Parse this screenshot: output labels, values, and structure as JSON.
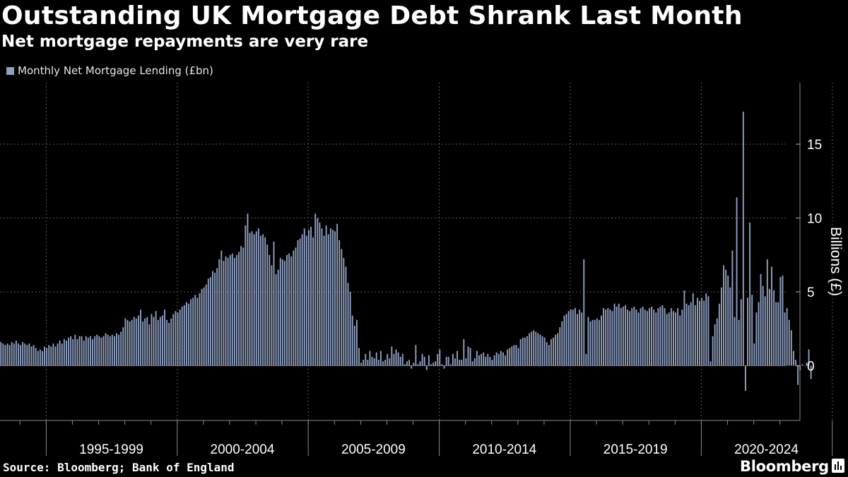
{
  "title": "Outstanding UK Mortgage Debt Shrank Last Month",
  "subtitle": "Net mortgage repayments are very rare",
  "legend": {
    "label": "Monthly Net Mortgage Lending (£bn)"
  },
  "source": "Source: Bloomberg; Bank of England",
  "brand": "Bloomberg",
  "colors": {
    "background": "#000000",
    "bar": "#8fa0c2",
    "grid": "#5a5a5a",
    "text": "#ffffff"
  },
  "chart_data": {
    "type": "bar",
    "title": "Outstanding UK Mortgage Debt Shrank Last Month",
    "subtitle": "Net mortgage repayments are very rare",
    "ylabel": "Billions (£)",
    "ylim": [
      -4,
      19
    ],
    "yticks": [
      0,
      5,
      10,
      15
    ],
    "y_axis_position": "right",
    "grid": "dotted",
    "legend_position": "top-left",
    "x_start": "1993-04",
    "frequency": "monthly",
    "x_group_labels": [
      "1995-1999",
      "2000-2004",
      "2005-2009",
      "2010-2014",
      "2015-2019",
      "2020-2024"
    ],
    "series": [
      {
        "name": "Monthly Net Mortgage Lending (£bn)",
        "values": [
          1.6,
          1.5,
          1.4,
          1.5,
          1.4,
          1.6,
          1.5,
          1.7,
          1.5,
          1.4,
          1.6,
          1.5,
          1.4,
          1.5,
          1.3,
          1.4,
          1.2,
          1.0,
          1.1,
          1.0,
          1.3,
          1.2,
          1.4,
          1.3,
          1.5,
          1.3,
          1.5,
          1.7,
          1.5,
          1.8,
          1.7,
          1.9,
          2.0,
          1.8,
          2.1,
          1.8,
          2.0,
          2.0,
          1.7,
          2.0,
          1.9,
          2.0,
          1.8,
          2.0,
          2.1,
          2.0,
          1.9,
          2.0,
          2.2,
          2.1,
          2.0,
          2.1,
          2.0,
          2.2,
          2.1,
          2.3,
          2.6,
          3.2,
          3.1,
          3.0,
          3.1,
          3.3,
          3.2,
          3.4,
          3.8,
          3.0,
          3.2,
          3.3,
          2.8,
          3.5,
          3.3,
          3.7,
          3.1,
          3.3,
          3.4,
          3.8,
          3.1,
          2.9,
          3.2,
          3.5,
          3.7,
          3.6,
          3.8,
          4.0,
          4.1,
          4.3,
          4.2,
          4.5,
          4.6,
          4.8,
          4.6,
          4.9,
          5.2,
          5.3,
          5.5,
          5.9,
          6.0,
          6.4,
          6.3,
          6.6,
          7.2,
          7.8,
          7.1,
          7.4,
          7.3,
          7.5,
          7.6,
          7.3,
          7.5,
          7.7,
          8.1,
          8.0,
          9.5,
          10.3,
          9.0,
          9.1,
          8.9,
          9.1,
          9.3,
          8.8,
          8.9,
          8.7,
          8.2,
          7.5,
          6.8,
          8.4,
          6.2,
          6.5,
          7.3,
          7.2,
          7.1,
          7.5,
          7.6,
          7.4,
          7.8,
          8.0,
          8.5,
          8.6,
          8.9,
          9.3,
          8.8,
          9.2,
          9.4,
          8.7,
          10.3,
          10.0,
          9.7,
          9.3,
          8.8,
          9.5,
          8.9,
          9.3,
          9.2,
          9.1,
          9.6,
          8.5,
          7.9,
          7.3,
          6.7,
          5.6,
          5.0,
          3.4,
          2.7,
          3.1,
          1.2,
          0.2,
          0.4,
          0.8,
          0.4,
          1.0,
          0.6,
          0.5,
          0.9,
          0.4,
          1.0,
          0.3,
          0.4,
          0.8,
          0.5,
          1.3,
          0.8,
          1.1,
          0.9,
          0.6,
          0.8,
          0.1,
          0.3,
          0.4,
          -0.2,
          0.2,
          1.4,
          0.1,
          0.3,
          0.8,
          0.6,
          -0.3,
          0.7,
          0.1,
          0.2,
          0.3,
          0.8,
          1.1,
          0.1,
          -0.2,
          0.6,
          0.6,
          0.1,
          0.8,
          0.5,
          1.0,
          0.4,
          0.4,
          1.8,
          0.5,
          1.3,
          1.2,
          0.3,
          0.5,
          1.0,
          0.7,
          0.8,
          0.9,
          0.6,
          0.8,
          0.6,
          0.4,
          0.7,
          0.9,
          0.8,
          1.0,
          0.9,
          0.7,
          1.1,
          1.2,
          1.3,
          1.4,
          1.4,
          1.2,
          1.8,
          1.9,
          1.9,
          2.0,
          2.2,
          2.3,
          2.4,
          2.3,
          2.2,
          2.1,
          2.0,
          1.9,
          1.6,
          1.4,
          1.8,
          1.9,
          2.1,
          2.2,
          2.6,
          3.0,
          3.4,
          3.5,
          3.7,
          3.8,
          3.8,
          3.9,
          3.5,
          3.8,
          3.6,
          7.2,
          0.8,
          3.3,
          3.0,
          3.1,
          3.1,
          3.2,
          3.1,
          3.4,
          3.9,
          3.8,
          3.9,
          3.8,
          3.7,
          4.2,
          4.0,
          4.2,
          3.9,
          4.0,
          4.1,
          3.8,
          3.7,
          3.9,
          4.0,
          3.8,
          3.6,
          3.9,
          4.0,
          3.8,
          3.7,
          3.9,
          4.0,
          3.8,
          3.6,
          3.9,
          4.0,
          4.1,
          3.9,
          3.5,
          3.6,
          3.9,
          3.7,
          3.6,
          3.9,
          3.4,
          3.8,
          5.1,
          4.2,
          4.1,
          4.3,
          4.9,
          4.1,
          4.6,
          4.4,
          4.6,
          4.4,
          4.9,
          4.7,
          0.3,
          2.0,
          2.8,
          3.2,
          4.2,
          5.3,
          6.8,
          6.5,
          6.1,
          5.3,
          7.8,
          3.3,
          11.4,
          3.1,
          4.5,
          17.2,
          -1.7,
          4.6,
          9.7,
          4.8,
          1.5,
          3.6,
          4.3,
          6.2,
          5.4,
          4.7,
          7.2,
          5.2,
          6.7,
          5.1,
          4.3,
          4.3,
          6.0,
          6.1,
          3.6,
          3.9,
          3.1,
          2.4,
          1.0,
          0.4,
          -1.3,
          -0.3,
          0.1,
          0.0,
          0.2,
          1.1,
          -0.9
        ]
      }
    ]
  }
}
